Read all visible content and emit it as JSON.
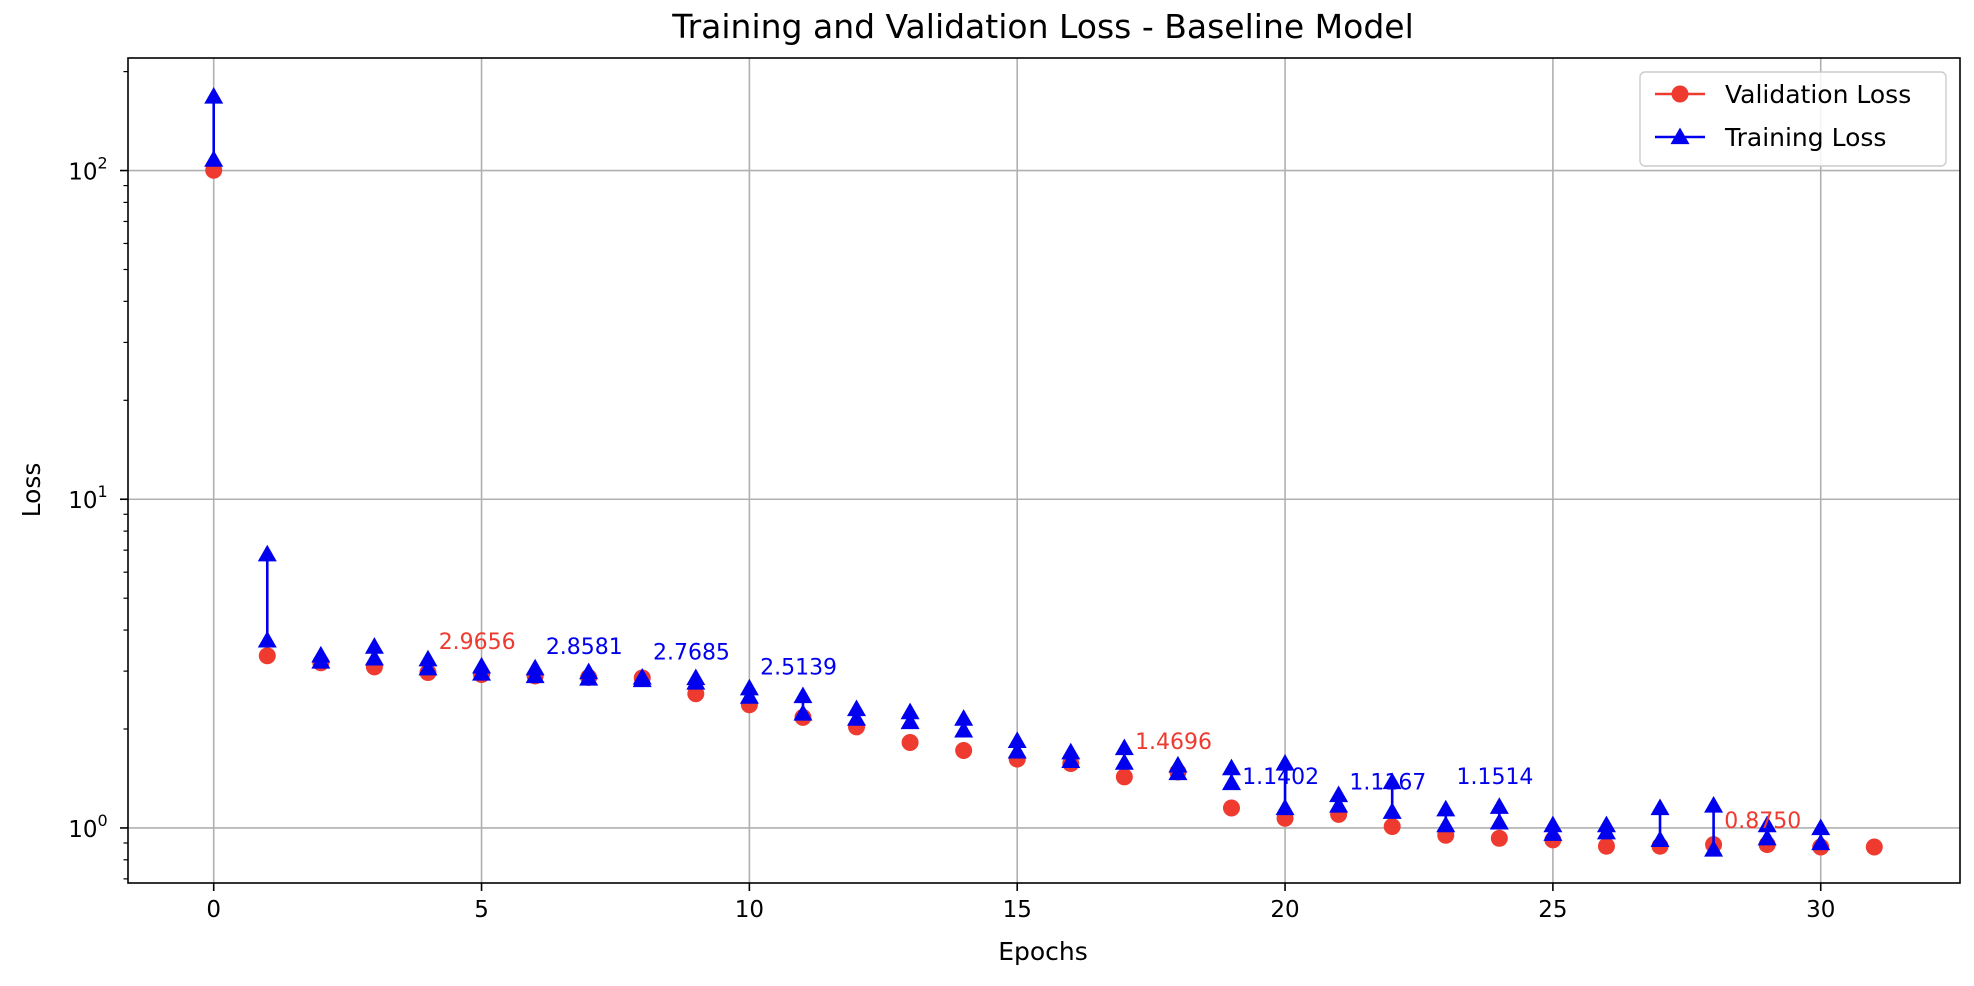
{
  "chart_data": {
    "type": "line",
    "title": "Training and Validation Loss - Baseline Model",
    "xlabel": "Epochs",
    "ylabel": "Loss",
    "yscale": "log",
    "xlim": [
      -1.6,
      32.6
    ],
    "ylim": [
      0.68,
      220
    ],
    "xticks": [
      0,
      5,
      10,
      15,
      20,
      25,
      30
    ],
    "yticks": [
      1,
      10,
      100
    ],
    "grid": true,
    "legend_position": "top-right",
    "series": [
      {
        "name": "Validation Loss",
        "color": "#ee3a2f",
        "marker": "circle",
        "x": [
          0,
          1,
          2,
          3,
          4,
          5,
          6,
          7,
          8,
          9,
          10,
          11,
          12,
          13,
          14,
          15,
          16,
          17,
          18,
          19,
          20,
          21,
          22,
          23,
          24,
          25,
          26,
          27,
          28,
          29,
          30,
          31
        ],
        "y": [
          100.2,
          3.34,
          3.18,
          3.09,
          2.97,
          2.93,
          2.9,
          2.87,
          2.86,
          2.56,
          2.37,
          2.17,
          2.03,
          1.82,
          1.72,
          1.62,
          1.57,
          1.43,
          1.48,
          1.15,
          1.07,
          1.1,
          1.01,
          0.95,
          0.93,
          0.92,
          0.88,
          0.88,
          0.89,
          0.89,
          0.875,
          0.875
        ]
      },
      {
        "name": "Training Loss",
        "color": "#0000ee",
        "marker": "triangle",
        "x": [
          0,
          0,
          1,
          1,
          2,
          2,
          3,
          3,
          4,
          4,
          5,
          5,
          6,
          6,
          7,
          7,
          8,
          8,
          9,
          9,
          10,
          10,
          11,
          11,
          12,
          12,
          13,
          13,
          14,
          14,
          15,
          15,
          16,
          16,
          17,
          17,
          18,
          18,
          19,
          19,
          20,
          20,
          21,
          21,
          22,
          22,
          23,
          23,
          24,
          24,
          25,
          25,
          26,
          26,
          27,
          27,
          28,
          28,
          29,
          29,
          30,
          30
        ],
        "y": [
          168,
          108,
          6.8,
          3.72,
          3.35,
          3.21,
          3.56,
          3.28,
          3.26,
          3.06,
          3.1,
          2.95,
          3.06,
          2.9,
          2.98,
          2.85,
          2.87,
          2.82,
          2.86,
          2.77,
          2.66,
          2.51,
          2.52,
          2.23,
          2.3,
          2.15,
          2.25,
          2.1,
          2.15,
          1.98,
          1.84,
          1.71,
          1.7,
          1.6,
          1.75,
          1.58,
          1.55,
          1.47,
          1.52,
          1.37,
          1.57,
          1.15,
          1.26,
          1.17,
          1.38,
          1.12,
          1.14,
          1.02,
          1.16,
          1.04,
          1.02,
          0.96,
          1.02,
          0.97,
          1.15,
          0.92,
          1.17,
          0.86,
          1.02,
          0.93,
          1.0,
          0.9
        ]
      }
    ],
    "annotations": [
      {
        "text": "2.9656",
        "x": 4.2,
        "y": 3.5,
        "color": "#ee3a2f"
      },
      {
        "text": "2.8581",
        "x": 6.2,
        "y": 3.38,
        "color": "#0000ee"
      },
      {
        "text": "2.7685",
        "x": 8.2,
        "y": 3.25,
        "color": "#0000ee"
      },
      {
        "text": "2.5139",
        "x": 10.2,
        "y": 2.93,
        "color": "#0000ee"
      },
      {
        "text": "1.4696",
        "x": 17.2,
        "y": 1.74,
        "color": "#ee3a2f"
      },
      {
        "text": "1.1402",
        "x": 19.2,
        "y": 1.36,
        "color": "#0000ee"
      },
      {
        "text": "1.1167",
        "x": 21.2,
        "y": 1.31,
        "color": "#0000ee"
      },
      {
        "text": "1.1514",
        "x": 23.2,
        "y": 1.36,
        "color": "#0000ee"
      },
      {
        "text": "0.8750",
        "x": 28.2,
        "y": 1.0,
        "color": "#ee3a2f"
      }
    ]
  }
}
